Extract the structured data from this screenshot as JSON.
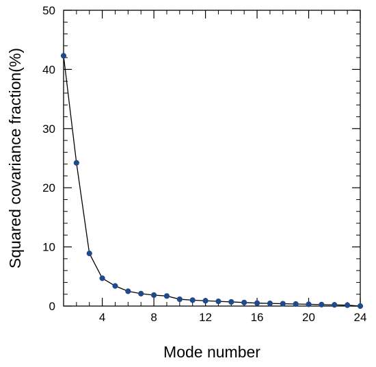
{
  "chart_data": {
    "type": "line",
    "title": "",
    "xlabel": "Mode number",
    "ylabel": "Squared covariance fraction(%)",
    "xlim": [
      1,
      24
    ],
    "ylim": [
      0,
      50
    ],
    "x_ticks": [
      4,
      8,
      12,
      16,
      20,
      24
    ],
    "y_ticks": [
      0,
      10,
      20,
      30,
      40,
      50
    ],
    "x_tick_labels": [
      "4",
      "8",
      "12",
      "16",
      "20",
      "24"
    ],
    "y_tick_labels": [
      "0",
      "10",
      "20",
      "30",
      "40",
      "50"
    ],
    "x_minor_step": 1,
    "y_minor_step": 2,
    "grid": false,
    "legend": "none",
    "series": [
      {
        "x": [
          1,
          2,
          3,
          4,
          5,
          6,
          7,
          8,
          9,
          10,
          11,
          12,
          13,
          14,
          15,
          16,
          17,
          18,
          19,
          20,
          21,
          22,
          23,
          24
        ],
        "values": [
          42.3,
          24.2,
          8.9,
          4.7,
          3.4,
          2.5,
          2.1,
          1.85,
          1.7,
          1.15,
          1.0,
          0.9,
          0.8,
          0.7,
          0.6,
          0.5,
          0.45,
          0.4,
          0.35,
          0.3,
          0.25,
          0.2,
          0.15,
          0.0
        ],
        "line_color": "#000000",
        "marker_color": "#1f4a8c"
      }
    ]
  }
}
